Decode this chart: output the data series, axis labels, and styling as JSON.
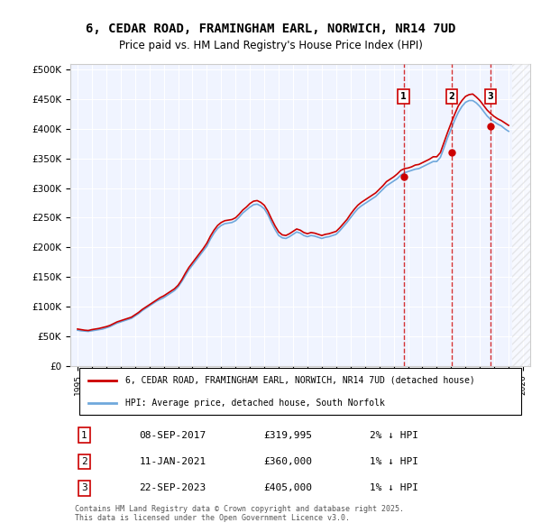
{
  "title": "6, CEDAR ROAD, FRAMINGHAM EARL, NORWICH, NR14 7UD",
  "subtitle": "Price paid vs. HM Land Registry's House Price Index (HPI)",
  "legend_line1": "6, CEDAR ROAD, FRAMINGHAM EARL, NORWICH, NR14 7UD (detached house)",
  "legend_line2": "HPI: Average price, detached house, South Norfolk",
  "ylabel_ticks": [
    "£0",
    "£50K",
    "£100K",
    "£150K",
    "£200K",
    "£250K",
    "£300K",
    "£350K",
    "£400K",
    "£450K",
    "£500K"
  ],
  "ytick_values": [
    0,
    50000,
    100000,
    150000,
    200000,
    250000,
    300000,
    350000,
    400000,
    450000,
    500000
  ],
  "xlim": [
    1994.5,
    2026.5
  ],
  "ylim": [
    0,
    510000
  ],
  "sale_points": [
    {
      "label": "1",
      "date": "08-SEP-2017",
      "price": 319995,
      "year": 2017.69,
      "note": "2% ↓ HPI"
    },
    {
      "label": "2",
      "date": "11-JAN-2021",
      "price": 360000,
      "year": 2021.03,
      "note": "1% ↓ HPI"
    },
    {
      "label": "3",
      "date": "22-SEP-2023",
      "price": 405000,
      "year": 2023.73,
      "note": "1% ↓ HPI"
    }
  ],
  "footnote": "Contains HM Land Registry data © Crown copyright and database right 2025.\nThis data is licensed under the Open Government Licence v3.0.",
  "hpi_color": "#6fa8dc",
  "price_color": "#cc0000",
  "sale_marker_color": "#cc0000",
  "vline_color": "#cc0000",
  "background_color": "#ffffff",
  "plot_bg_color": "#f0f4ff",
  "grid_color": "#ffffff",
  "hpi_data_x": [
    1995.0,
    1995.25,
    1995.5,
    1995.75,
    1996.0,
    1996.25,
    1996.5,
    1996.75,
    1997.0,
    1997.25,
    1997.5,
    1997.75,
    1998.0,
    1998.25,
    1998.5,
    1998.75,
    1999.0,
    1999.25,
    1999.5,
    1999.75,
    2000.0,
    2000.25,
    2000.5,
    2000.75,
    2001.0,
    2001.25,
    2001.5,
    2001.75,
    2002.0,
    2002.25,
    2002.5,
    2002.75,
    2003.0,
    2003.25,
    2003.5,
    2003.75,
    2004.0,
    2004.25,
    2004.5,
    2004.75,
    2005.0,
    2005.25,
    2005.5,
    2005.75,
    2006.0,
    2006.25,
    2006.5,
    2006.75,
    2007.0,
    2007.25,
    2007.5,
    2007.75,
    2008.0,
    2008.25,
    2008.5,
    2008.75,
    2009.0,
    2009.25,
    2009.5,
    2009.75,
    2010.0,
    2010.25,
    2010.5,
    2010.75,
    2011.0,
    2011.25,
    2011.5,
    2011.75,
    2012.0,
    2012.25,
    2012.5,
    2012.75,
    2013.0,
    2013.25,
    2013.5,
    2013.75,
    2014.0,
    2014.25,
    2014.5,
    2014.75,
    2015.0,
    2015.25,
    2015.5,
    2015.75,
    2016.0,
    2016.25,
    2016.5,
    2016.75,
    2017.0,
    2017.25,
    2017.5,
    2017.75,
    2018.0,
    2018.25,
    2018.5,
    2018.75,
    2019.0,
    2019.25,
    2019.5,
    2019.75,
    2020.0,
    2020.25,
    2020.5,
    2020.75,
    2021.0,
    2021.25,
    2021.5,
    2021.75,
    2022.0,
    2022.25,
    2022.5,
    2022.75,
    2023.0,
    2023.25,
    2023.5,
    2023.75,
    2024.0,
    2024.25,
    2024.5,
    2024.75,
    2025.0
  ],
  "hpi_data_y": [
    60000,
    59000,
    58500,
    58000,
    59000,
    60000,
    61000,
    62000,
    64000,
    66000,
    69000,
    72000,
    74000,
    76000,
    78000,
    80000,
    84000,
    88000,
    93000,
    97000,
    101000,
    105000,
    109000,
    112000,
    115000,
    119000,
    123000,
    127000,
    133000,
    142000,
    152000,
    162000,
    170000,
    178000,
    186000,
    194000,
    202000,
    214000,
    224000,
    232000,
    237000,
    240000,
    241000,
    242000,
    245000,
    251000,
    258000,
    263000,
    268000,
    272000,
    273000,
    270000,
    265000,
    255000,
    242000,
    230000,
    220000,
    216000,
    215000,
    218000,
    222000,
    226000,
    224000,
    220000,
    218000,
    220000,
    219000,
    217000,
    215000,
    217000,
    218000,
    220000,
    222000,
    228000,
    235000,
    242000,
    250000,
    258000,
    265000,
    270000,
    274000,
    278000,
    282000,
    286000,
    292000,
    298000,
    304000,
    308000,
    312000,
    316000,
    322000,
    326000,
    328000,
    330000,
    332000,
    333000,
    336000,
    339000,
    342000,
    345000,
    345000,
    352000,
    368000,
    385000,
    400000,
    415000,
    428000,
    438000,
    445000,
    448000,
    448000,
    444000,
    438000,
    430000,
    422000,
    416000,
    412000,
    408000,
    405000,
    400000,
    396000
  ],
  "price_data_x": [
    1995.0,
    1995.25,
    1995.5,
    1995.75,
    1996.0,
    1996.25,
    1996.5,
    1996.75,
    1997.0,
    1997.25,
    1997.5,
    1997.75,
    1998.0,
    1998.25,
    1998.5,
    1998.75,
    1999.0,
    1999.25,
    1999.5,
    1999.75,
    2000.0,
    2000.25,
    2000.5,
    2000.75,
    2001.0,
    2001.25,
    2001.5,
    2001.75,
    2002.0,
    2002.25,
    2002.5,
    2002.75,
    2003.0,
    2003.25,
    2003.5,
    2003.75,
    2004.0,
    2004.25,
    2004.5,
    2004.75,
    2005.0,
    2005.25,
    2005.5,
    2005.75,
    2006.0,
    2006.25,
    2006.5,
    2006.75,
    2007.0,
    2007.25,
    2007.5,
    2007.75,
    2008.0,
    2008.25,
    2008.5,
    2008.75,
    2009.0,
    2009.25,
    2009.5,
    2009.75,
    2010.0,
    2010.25,
    2010.5,
    2010.75,
    2011.0,
    2011.25,
    2011.5,
    2011.75,
    2012.0,
    2012.25,
    2012.5,
    2012.75,
    2013.0,
    2013.25,
    2013.5,
    2013.75,
    2014.0,
    2014.25,
    2014.5,
    2014.75,
    2015.0,
    2015.25,
    2015.5,
    2015.75,
    2016.0,
    2016.25,
    2016.5,
    2016.75,
    2017.0,
    2017.25,
    2017.5,
    2017.75,
    2018.0,
    2018.25,
    2018.5,
    2018.75,
    2019.0,
    2019.25,
    2019.5,
    2019.75,
    2020.0,
    2020.25,
    2020.5,
    2020.75,
    2021.0,
    2021.25,
    2021.5,
    2021.75,
    2022.0,
    2022.25,
    2022.5,
    2022.75,
    2023.0,
    2023.25,
    2023.5,
    2023.75,
    2024.0,
    2024.25,
    2024.5,
    2024.75,
    2025.0
  ],
  "price_data_y": [
    62000,
    61000,
    60000,
    59500,
    61000,
    62000,
    63000,
    64500,
    66000,
    68000,
    71000,
    74000,
    76000,
    78000,
    80000,
    82000,
    86000,
    90000,
    95000,
    99000,
    103000,
    107000,
    111000,
    115000,
    118000,
    122000,
    126000,
    130000,
    136000,
    145000,
    156000,
    166000,
    174000,
    182000,
    190000,
    198000,
    207000,
    219000,
    229000,
    237000,
    242000,
    245000,
    246000,
    247000,
    250000,
    256000,
    263000,
    268000,
    274000,
    278000,
    279000,
    276000,
    271000,
    261000,
    248000,
    236000,
    226000,
    221000,
    220000,
    223000,
    227000,
    231000,
    229000,
    225000,
    223000,
    225000,
    224000,
    222000,
    220000,
    222000,
    223000,
    225000,
    227000,
    233000,
    240000,
    247000,
    256000,
    264000,
    271000,
    276000,
    280000,
    284000,
    288000,
    292000,
    298000,
    304000,
    311000,
    315000,
    319000,
    324000,
    330000,
    333000,
    334000,
    336000,
    339000,
    340000,
    343000,
    346000,
    349000,
    353000,
    353000,
    360000,
    377000,
    394000,
    410000,
    425000,
    439000,
    448000,
    455000,
    458000,
    459000,
    454000,
    448000,
    440000,
    432000,
    426000,
    421000,
    417000,
    414000,
    410000,
    406000
  ],
  "xtick_years": [
    1995,
    1996,
    1997,
    1998,
    1999,
    2000,
    2001,
    2002,
    2003,
    2004,
    2005,
    2006,
    2007,
    2008,
    2009,
    2010,
    2011,
    2012,
    2013,
    2014,
    2015,
    2016,
    2017,
    2018,
    2019,
    2020,
    2021,
    2022,
    2023,
    2024,
    2025,
    2026
  ]
}
